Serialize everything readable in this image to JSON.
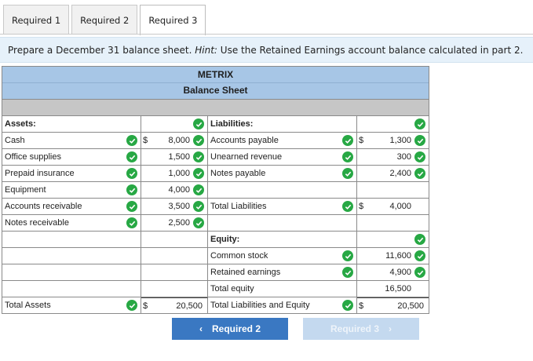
{
  "tabs": [
    {
      "label": "Required 1"
    },
    {
      "label": "Required 2"
    },
    {
      "label": "Required 3"
    }
  ],
  "instruction": {
    "main": "Prepare a December 31 balance sheet.",
    "hint_label": "Hint:",
    "hint_text": "Use the Retained Earnings account balance calculated in part 2."
  },
  "sheet": {
    "company": "METRIX",
    "title": "Balance Sheet",
    "assets_heading": "Assets:",
    "liabilities_heading": "Liabilities:",
    "assets": [
      {
        "label": "Cash",
        "dollar": "$",
        "value": "8,000"
      },
      {
        "label": "Office supplies",
        "value": "1,500"
      },
      {
        "label": "Prepaid insurance",
        "value": "1,000"
      },
      {
        "label": "Equipment",
        "value": "4,000"
      },
      {
        "label": "Accounts receivable",
        "value": "3,500"
      },
      {
        "label": "Notes receivable",
        "value": "2,500"
      }
    ],
    "liabilities": [
      {
        "label": "Accounts payable",
        "dollar": "$",
        "value": "1,300"
      },
      {
        "label": "Unearned revenue",
        "value": "300"
      },
      {
        "label": "Notes payable",
        "value": "2,400"
      }
    ],
    "total_liabilities": {
      "label": "Total Liabilities",
      "dollar": "$",
      "value": "4,000"
    },
    "equity_heading": "Equity:",
    "equity": [
      {
        "label": "Common stock",
        "value": "11,600"
      },
      {
        "label": "Retained earnings",
        "value": "4,900"
      }
    ],
    "total_equity": {
      "label": "Total equity",
      "value": "16,500"
    },
    "total_assets": {
      "label": "Total Assets",
      "dollar": "$",
      "value": "20,500"
    },
    "total_liab_equity": {
      "label": "Total Liabilities and Equity",
      "dollar": "$",
      "value": "20,500"
    }
  },
  "nav": {
    "prev_label": "Required 2",
    "next_label": "Required 3",
    "prev_chevron": "‹",
    "next_chevron": "›"
  },
  "colors": {
    "header_blue": "#a7c6e6",
    "check_green": "#27a844",
    "prev_button": "#3a78c2",
    "next_button_disabled": "#c4d9ef"
  }
}
